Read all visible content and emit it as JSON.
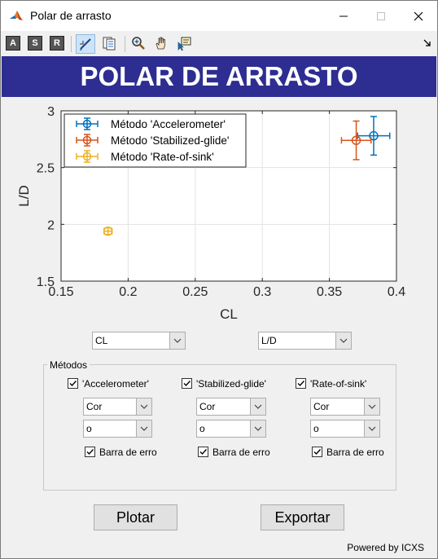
{
  "window": {
    "title": "Polar de arrasto"
  },
  "toolbar": {
    "letters": [
      "A",
      "S",
      "R"
    ]
  },
  "banner": {
    "title": "POLAR DE ARRASTO"
  },
  "chart_data": {
    "type": "scatter",
    "xlabel": "CL",
    "ylabel": "L/D",
    "xlim": [
      0.15,
      0.4
    ],
    "ylim": [
      1.5,
      3
    ],
    "xticks": [
      "0.15",
      "0.2",
      "0.25",
      "0.3",
      "0.35",
      "0.4"
    ],
    "yticks": [
      "1.5",
      "2",
      "2.5",
      "3"
    ],
    "grid": true,
    "legend_position": "top-left",
    "series": [
      {
        "name": "Método 'Accelerometer'",
        "color": "#0072bd",
        "marker": "circle",
        "x": 0.383,
        "y": 2.78,
        "xerr": 0.012,
        "yerr": 0.17
      },
      {
        "name": "Método 'Stabilized-glide'",
        "color": "#d95319",
        "marker": "circle",
        "x": 0.37,
        "y": 2.74,
        "xerr": 0.011,
        "yerr": 0.17
      },
      {
        "name": "Método 'Rate-of-sink'",
        "color": "#edb120",
        "marker": "circle",
        "x": 0.185,
        "y": 1.94,
        "xerr": 0.003,
        "yerr": 0.03
      }
    ]
  },
  "selectors": {
    "x_axis": "CL",
    "y_axis": "L/D"
  },
  "methods": {
    "group_label": "Métodos",
    "items": [
      {
        "label": "'Accelerometer'",
        "color": "Cor",
        "marker": "o",
        "errorbar": "Barra de erro"
      },
      {
        "label": "'Stabilized-glide'",
        "color": "Cor",
        "marker": "o",
        "errorbar": "Barra de erro"
      },
      {
        "label": "'Rate-of-sink'",
        "color": "Cor",
        "marker": "o",
        "errorbar": "Barra de erro"
      }
    ]
  },
  "buttons": {
    "plot": "Plotar",
    "export": "Exportar"
  },
  "footer": {
    "text": "Powered by ICXS"
  }
}
